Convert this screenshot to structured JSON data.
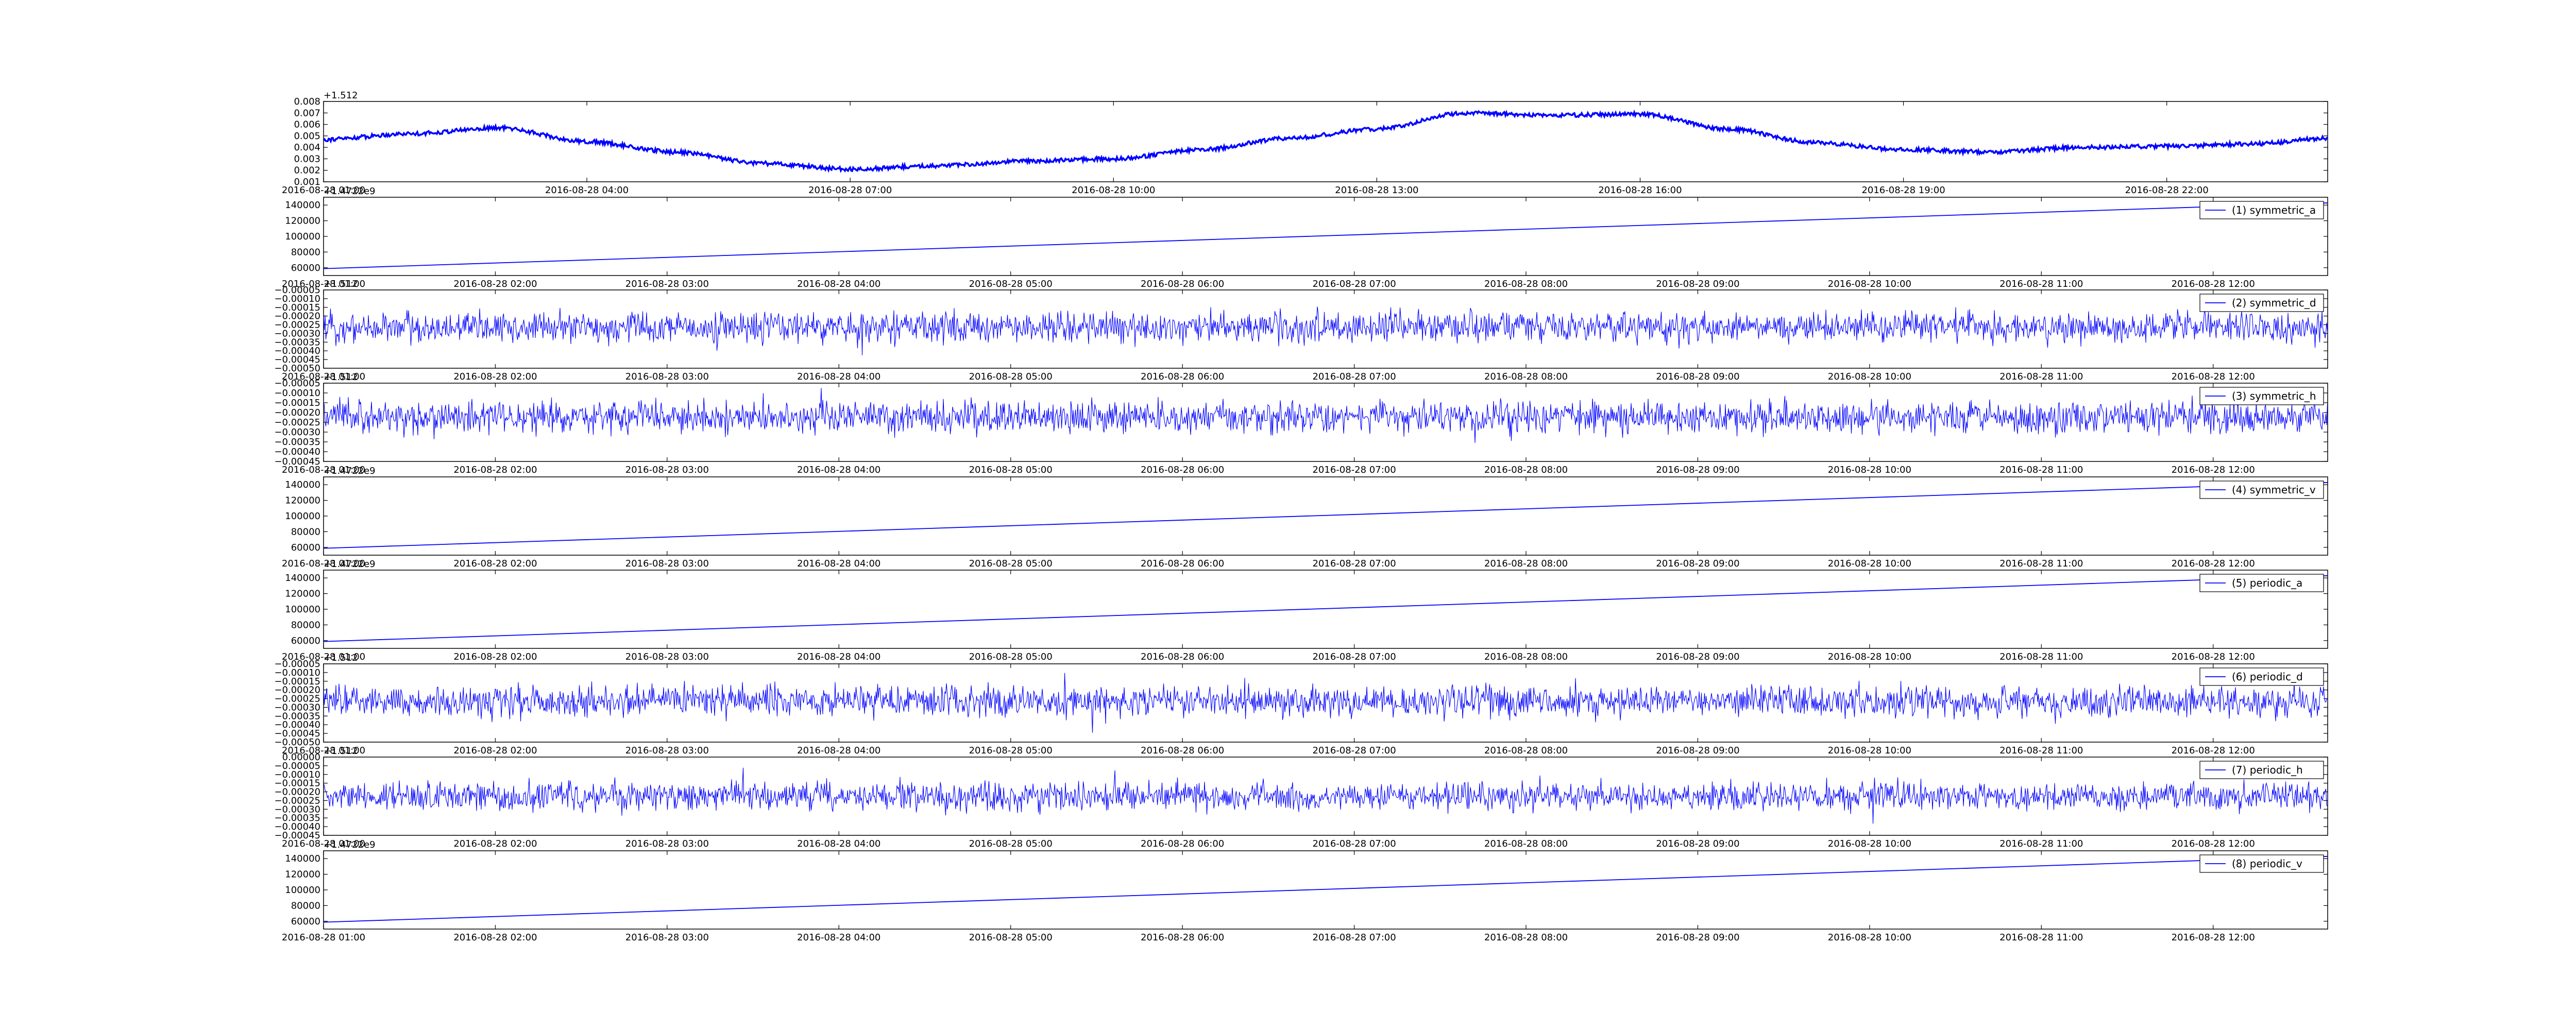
{
  "chart_data": [
    {
      "type": "line",
      "kind": "wander",
      "title": "",
      "xlabel": "",
      "ylabel": "",
      "offset_label": "+1.512",
      "x_start": "2016-08-28 01:00",
      "x_end": "2016-08-28 23:50",
      "xticks": [
        "2016-08-28 01:00",
        "2016-08-28 04:00",
        "2016-08-28 07:00",
        "2016-08-28 10:00",
        "2016-08-28 13:00",
        "2016-08-28 16:00",
        "2016-08-28 19:00",
        "2016-08-28 22:00"
      ],
      "yticks": [
        "0.008",
        "0.007",
        "0.006",
        "0.005",
        "0.004",
        "0.003",
        "0.002",
        "0.001"
      ],
      "ylim": [
        0.001,
        0.008
      ],
      "series": [
        {
          "color": "#0000ff",
          "x": [
            "2016-08-28 01:00",
            "2016-08-28 02:00",
            "2016-08-28 03:00",
            "2016-08-28 04:00",
            "2016-08-28 05:00",
            "2016-08-28 06:00",
            "2016-08-28 07:00",
            "2016-08-28 08:00",
            "2016-08-28 09:00",
            "2016-08-28 10:00",
            "2016-08-28 11:00",
            "2016-08-28 12:00",
            "2016-08-28 13:00",
            "2016-08-28 14:00",
            "2016-08-28 15:00",
            "2016-08-28 16:00",
            "2016-08-28 17:00",
            "2016-08-28 18:00",
            "2016-08-28 19:00",
            "2016-08-28 20:00",
            "2016-08-28 21:00",
            "2016-08-28 22:00",
            "2016-08-28 23:00",
            "2016-08-28 23:50"
          ],
          "values": [
            0.0047,
            0.0052,
            0.0057,
            0.0045,
            0.0036,
            0.0026,
            0.0021,
            0.0024,
            0.0028,
            0.003,
            0.0038,
            0.0048,
            0.0056,
            0.007,
            0.0068,
            0.0069,
            0.0056,
            0.0044,
            0.0038,
            0.0036,
            0.004,
            0.0041,
            0.0043,
            0.0048
          ]
        }
      ]
    },
    {
      "type": "line",
      "kind": "linear",
      "offset_label": "+1.4722e9",
      "x_start": "2016-08-28 01:00",
      "x_end": "2016-08-28 12:40",
      "xticks": [
        "2016-08-28 01:00",
        "2016-08-28 02:00",
        "2016-08-28 03:00",
        "2016-08-28 04:00",
        "2016-08-28 05:00",
        "2016-08-28 06:00",
        "2016-08-28 07:00",
        "2016-08-28 08:00",
        "2016-08-28 09:00",
        "2016-08-28 10:00",
        "2016-08-28 11:00",
        "2016-08-28 12:00"
      ],
      "yticks": [
        "140000",
        "120000",
        "100000",
        "80000",
        "60000"
      ],
      "ylim": [
        50000,
        150000
      ],
      "series": [
        {
          "name": "(1) symmetric_a",
          "color": "#0000ff",
          "x": [
            "2016-08-28 01:00",
            "2016-08-28 12:40"
          ],
          "values": [
            58800,
            142800
          ]
        }
      ],
      "legend": "top-right"
    },
    {
      "type": "line",
      "kind": "noise",
      "offset_label": "+1.512",
      "x_start": "2016-08-28 01:00",
      "x_end": "2016-08-28 12:40",
      "xticks": [
        "2016-08-28 01:00",
        "2016-08-28 02:00",
        "2016-08-28 03:00",
        "2016-08-28 04:00",
        "2016-08-28 05:00",
        "2016-08-28 06:00",
        "2016-08-28 07:00",
        "2016-08-28 08:00",
        "2016-08-28 09:00",
        "2016-08-28 10:00",
        "2016-08-28 11:00",
        "2016-08-28 12:00"
      ],
      "yticks": [
        "−0.00005",
        "−0.00010",
        "−0.00015",
        "−0.00020",
        "−0.00025",
        "−0.00030",
        "−0.00035",
        "−0.00040",
        "−0.00045",
        "−0.00050"
      ],
      "ylim": [
        -0.0005,
        -5e-05
      ],
      "series": [
        {
          "name": "(2) symmetric_d",
          "color": "#0000ff",
          "mean": -0.000265,
          "amplitude": 0.00013
        }
      ],
      "legend": "top-right"
    },
    {
      "type": "line",
      "kind": "noise",
      "offset_label": "+1.512",
      "x_start": "2016-08-28 01:00",
      "x_end": "2016-08-28 12:40",
      "xticks": [
        "2016-08-28 01:00",
        "2016-08-28 02:00",
        "2016-08-28 03:00",
        "2016-08-28 04:00",
        "2016-08-28 05:00",
        "2016-08-28 06:00",
        "2016-08-28 07:00",
        "2016-08-28 08:00",
        "2016-08-28 09:00",
        "2016-08-28 10:00",
        "2016-08-28 11:00",
        "2016-08-28 12:00"
      ],
      "yticks": [
        "−0.00005",
        "−0.00010",
        "−0.00015",
        "−0.00020",
        "−0.00025",
        "−0.00030",
        "−0.00035",
        "−0.00040",
        "−0.00045"
      ],
      "ylim": [
        -0.00045,
        -5e-05
      ],
      "series": [
        {
          "name": "(3) symmetric_h",
          "color": "#0000ff",
          "mean": -0.000225,
          "amplitude": 0.00012
        }
      ],
      "legend": "top-right"
    },
    {
      "type": "line",
      "kind": "linear",
      "offset_label": "+1.4722e9",
      "x_start": "2016-08-28 01:00",
      "x_end": "2016-08-28 12:40",
      "xticks": [
        "2016-08-28 01:00",
        "2016-08-28 02:00",
        "2016-08-28 03:00",
        "2016-08-28 04:00",
        "2016-08-28 05:00",
        "2016-08-28 06:00",
        "2016-08-28 07:00",
        "2016-08-28 08:00",
        "2016-08-28 09:00",
        "2016-08-28 10:00",
        "2016-08-28 11:00",
        "2016-08-28 12:00"
      ],
      "yticks": [
        "140000",
        "120000",
        "100000",
        "80000",
        "60000"
      ],
      "ylim": [
        50000,
        150000
      ],
      "series": [
        {
          "name": "(4) symmetric_v",
          "color": "#0000ff",
          "x": [
            "2016-08-28 01:00",
            "2016-08-28 12:40"
          ],
          "values": [
            58800,
            142800
          ]
        }
      ],
      "legend": "top-right"
    },
    {
      "type": "line",
      "kind": "linear",
      "offset_label": "+1.4722e9",
      "x_start": "2016-08-28 01:00",
      "x_end": "2016-08-28 12:40",
      "xticks": [
        "2016-08-28 01:00",
        "2016-08-28 02:00",
        "2016-08-28 03:00",
        "2016-08-28 04:00",
        "2016-08-28 05:00",
        "2016-08-28 06:00",
        "2016-08-28 07:00",
        "2016-08-28 08:00",
        "2016-08-28 09:00",
        "2016-08-28 10:00",
        "2016-08-28 11:00",
        "2016-08-28 12:00"
      ],
      "yticks": [
        "140000",
        "120000",
        "100000",
        "80000",
        "60000"
      ],
      "ylim": [
        50000,
        150000
      ],
      "series": [
        {
          "name": "(5) periodic_a",
          "color": "#0000ff",
          "x": [
            "2016-08-28 01:00",
            "2016-08-28 12:40"
          ],
          "values": [
            58800,
            142800
          ]
        }
      ],
      "legend": "top-right"
    },
    {
      "type": "line",
      "kind": "noise",
      "offset_label": "+1.512",
      "x_start": "2016-08-28 01:00",
      "x_end": "2016-08-28 12:40",
      "xticks": [
        "2016-08-28 01:00",
        "2016-08-28 02:00",
        "2016-08-28 03:00",
        "2016-08-28 04:00",
        "2016-08-28 05:00",
        "2016-08-28 06:00",
        "2016-08-28 07:00",
        "2016-08-28 08:00",
        "2016-08-28 09:00",
        "2016-08-28 10:00",
        "2016-08-28 11:00",
        "2016-08-28 12:00"
      ],
      "yticks": [
        "−0.00005",
        "−0.00010",
        "−0.00015",
        "−0.00020",
        "−0.00025",
        "−0.00030",
        "−0.00035",
        "−0.00040",
        "−0.00045",
        "−0.00050"
      ],
      "ylim": [
        -0.0005,
        -5e-05
      ],
      "series": [
        {
          "name": "(6) periodic_d",
          "color": "#0000ff",
          "mean": -0.000265,
          "amplitude": 0.00013
        }
      ],
      "legend": "top-right"
    },
    {
      "type": "line",
      "kind": "noise",
      "offset_label": "+1.512",
      "x_start": "2016-08-28 01:00",
      "x_end": "2016-08-28 12:40",
      "xticks": [
        "2016-08-28 01:00",
        "2016-08-28 02:00",
        "2016-08-28 03:00",
        "2016-08-28 04:00",
        "2016-08-28 05:00",
        "2016-08-28 06:00",
        "2016-08-28 07:00",
        "2016-08-28 08:00",
        "2016-08-28 09:00",
        "2016-08-28 10:00",
        "2016-08-28 11:00",
        "2016-08-28 12:00"
      ],
      "yticks": [
        "0.00000",
        "−0.00005",
        "−0.00010",
        "−0.00015",
        "−0.00020",
        "−0.00025",
        "−0.00030",
        "−0.00035",
        "−0.00040",
        "−0.00045"
      ],
      "ylim": [
        -0.00045,
        0.0
      ],
      "series": [
        {
          "name": "(7) periodic_h",
          "color": "#0000ff",
          "mean": -0.000225,
          "amplitude": 0.00012
        }
      ],
      "legend": "top-right"
    },
    {
      "type": "line",
      "kind": "linear",
      "offset_label": "+1.4722e9",
      "x_start": "2016-08-28 01:00",
      "x_end": "2016-08-28 12:40",
      "xticks": [
        "2016-08-28 01:00",
        "2016-08-28 02:00",
        "2016-08-28 03:00",
        "2016-08-28 04:00",
        "2016-08-28 05:00",
        "2016-08-28 06:00",
        "2016-08-28 07:00",
        "2016-08-28 08:00",
        "2016-08-28 09:00",
        "2016-08-28 10:00",
        "2016-08-28 11:00",
        "2016-08-28 12:00"
      ],
      "yticks": [
        "140000",
        "120000",
        "100000",
        "80000",
        "60000"
      ],
      "ylim": [
        50000,
        150000
      ],
      "series": [
        {
          "name": "(8) periodic_v",
          "color": "#0000ff",
          "x": [
            "2016-08-28 01:00",
            "2016-08-28 12:40"
          ],
          "values": [
            58800,
            142800
          ]
        }
      ],
      "legend": "top-right"
    }
  ]
}
